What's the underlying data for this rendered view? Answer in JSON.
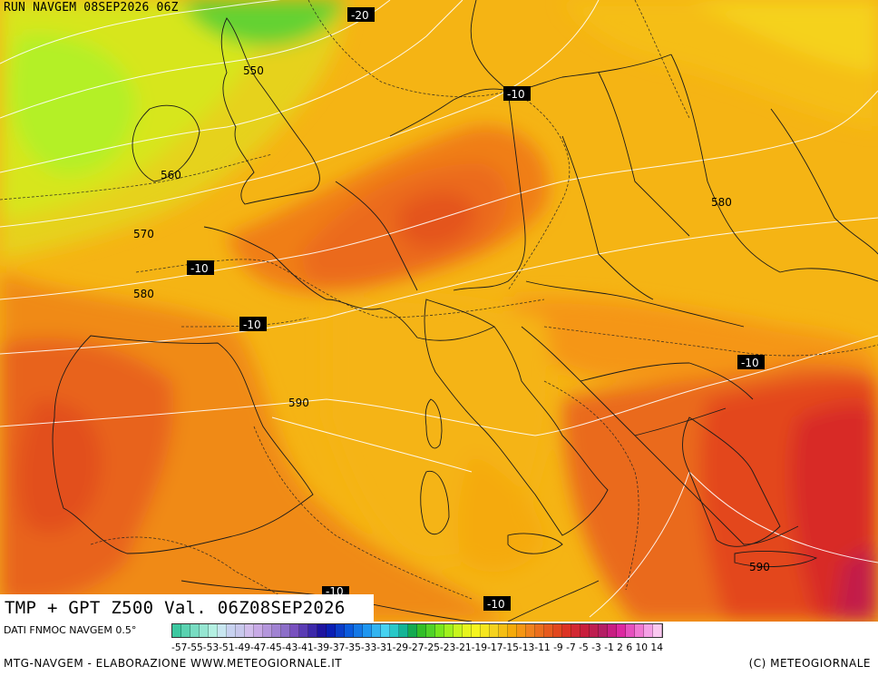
{
  "header": {
    "run_title": "RUN NAVGEM 08SEP2026 06Z"
  },
  "map": {
    "product_title": "TMP + GPT Z500 Val. 06Z08SEP2026",
    "gpt_labels": [
      "550",
      "560",
      "570",
      "580",
      "580",
      "590",
      "590"
    ],
    "temp_labels": [
      "-20",
      "-10",
      "-10",
      "-10",
      "-10",
      "-10",
      "-10"
    ]
  },
  "legend": {
    "data_source": "DATI FNMOC NAVGEM 0.5°",
    "tick_labels": "-57-55-53-51-49-47-45-43-41-39-37-35-33-31-29-27-25-23-21-19-17-15-13-11 -9  -7  -5  -3  -1   2   6  10  14",
    "colors": [
      "#3cc8a0",
      "#5ad2b0",
      "#78dcc2",
      "#96e6d2",
      "#b4f0e2",
      "#c8e6f0",
      "#c8d2f0",
      "#c8c8ec",
      "#d2beec",
      "#c8aae6",
      "#b496dc",
      "#a082d2",
      "#8c6ec8",
      "#7850be",
      "#5a3cb4",
      "#3c28aa",
      "#1e14a0",
      "#0a1eb4",
      "#0a3cc8",
      "#0a5adc",
      "#1478e6",
      "#1e96f0",
      "#32b4f0",
      "#46d2f0",
      "#28c8c8",
      "#14b496",
      "#14aa50",
      "#32be28",
      "#50d228",
      "#78e61e",
      "#a0f01e",
      "#c8f51e",
      "#e6f51e",
      "#f5f51e",
      "#f5e61e",
      "#f5d21e",
      "#f5be14",
      "#f5aa0a",
      "#f59614",
      "#f0821e",
      "#eb6e1e",
      "#e65a1e",
      "#e1461e",
      "#dc3223",
      "#d22832",
      "#c81e3c",
      "#be1e50",
      "#b41e64",
      "#c81e82",
      "#dc28a0",
      "#e650be",
      "#f078d2",
      "#f5a0e6",
      "#fac8f0"
    ]
  },
  "footer": {
    "left": "MTG-NAVGEM - ELABORAZIONE WWW.METEOGIORNALE.IT",
    "right": "(C) METEOGIORNALE"
  }
}
